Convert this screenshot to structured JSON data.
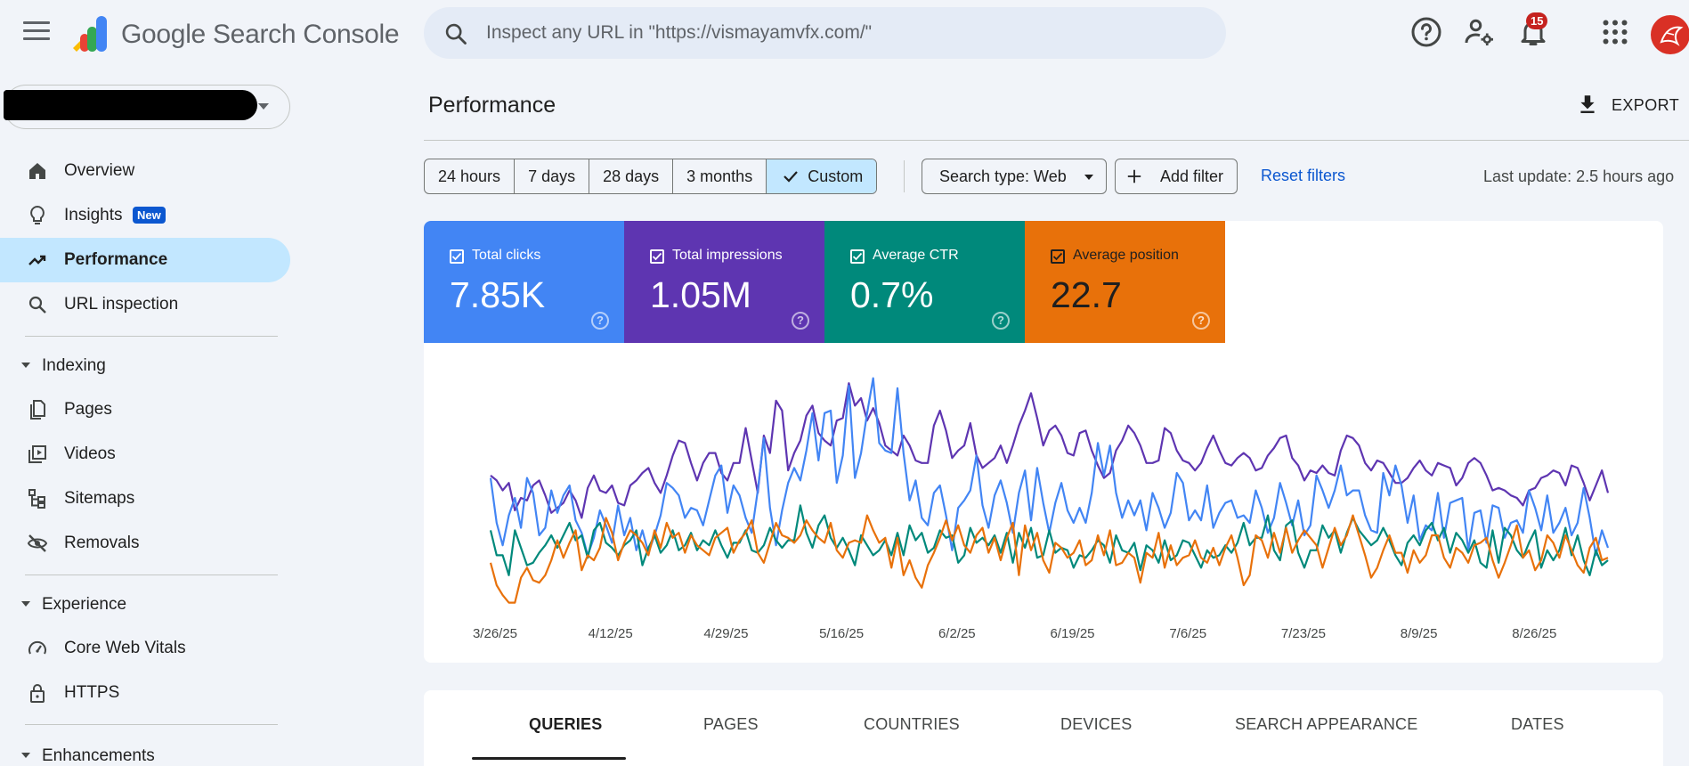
{
  "app": {
    "brand": "Google Search Console"
  },
  "search": {
    "placeholder": "Inspect any URL in \"https://vismayamvfx.com/\""
  },
  "notifications": {
    "count": "15"
  },
  "colors": {
    "clicks": "#4285f4",
    "impressions": "#5e35b1",
    "ctr": "#00897b",
    "position": "#e8710a",
    "active_nav": "#c2e7ff"
  },
  "sidebar": {
    "items": [
      {
        "label": "Overview",
        "icon": "home-icon"
      },
      {
        "label": "Insights",
        "icon": "lightbulb-icon",
        "badge": "New"
      },
      {
        "label": "Performance",
        "icon": "trending-up-icon",
        "active": true
      },
      {
        "label": "URL inspection",
        "icon": "search-icon"
      }
    ],
    "sections": [
      {
        "label": "Indexing",
        "items": [
          {
            "label": "Pages",
            "icon": "pages-icon"
          },
          {
            "label": "Videos",
            "icon": "video-icon"
          },
          {
            "label": "Sitemaps",
            "icon": "sitemap-icon"
          },
          {
            "label": "Removals",
            "icon": "visibility-off-icon"
          }
        ]
      },
      {
        "label": "Experience",
        "items": [
          {
            "label": "Core Web Vitals",
            "icon": "speedometer-icon"
          },
          {
            "label": "HTTPS",
            "icon": "lock-icon"
          }
        ]
      },
      {
        "label": "Enhancements",
        "items": []
      }
    ]
  },
  "main": {
    "title": "Performance",
    "export_label": "EXPORT",
    "date_ranges": [
      "24 hours",
      "7 days",
      "28 days",
      "3 months",
      "Custom"
    ],
    "selected_range": "Custom",
    "search_type": "Search type: Web",
    "add_filter": "Add filter",
    "reset_filters": "Reset filters",
    "last_update": "Last update: 2.5 hours ago"
  },
  "metrics": [
    {
      "label": "Total clicks",
      "value": "7.85K",
      "checked": true
    },
    {
      "label": "Total impressions",
      "value": "1.05M",
      "checked": true
    },
    {
      "label": "Average CTR",
      "value": "0.7%",
      "checked": true
    },
    {
      "label": "Average position",
      "value": "22.7",
      "checked": true
    }
  ],
  "chart_data": {
    "type": "line",
    "x_tick_labels": [
      "3/26/25",
      "4/12/25",
      "4/29/25",
      "5/16/25",
      "6/2/25",
      "6/19/25",
      "7/6/25",
      "7/23/25",
      "8/9/25",
      "8/26/25"
    ],
    "x_start": "3/26/25",
    "y_axis": "hidden (independent normalized scale per series)",
    "grid": false,
    "legend": "metric cards above chart",
    "series": [
      {
        "name": "Total impressions",
        "color": "#5e35b1",
        "values": [
          54,
          52,
          48,
          51,
          40,
          45,
          44,
          50,
          52,
          46,
          39,
          41,
          43,
          48,
          44,
          37,
          49,
          54,
          48,
          47,
          50,
          43,
          42,
          50,
          52,
          55,
          57,
          51,
          47,
          54,
          62,
          68,
          67,
          59,
          52,
          59,
          63,
          63,
          55,
          52,
          59,
          59,
          73,
          60,
          47,
          70,
          63,
          84,
          80,
          56,
          63,
          68,
          78,
          82,
          71,
          68,
          66,
          76,
          77,
          91,
          82,
          85,
          76,
          81,
          75,
          66,
          64,
          62,
          70,
          66,
          60,
          59,
          59,
          74,
          80,
          72,
          61,
          64,
          66,
          75,
          62,
          57,
          59,
          61,
          66,
          59,
          66,
          74,
          80,
          87,
          77,
          66,
          72,
          74,
          70,
          63,
          62,
          71,
          72,
          64,
          58,
          53,
          55,
          64,
          68,
          74,
          71,
          66,
          59,
          59,
          60,
          73,
          71,
          64,
          60,
          59,
          56,
          59,
          65,
          70,
          64,
          59,
          58,
          61,
          63,
          61,
          56,
          57,
          62,
          65,
          69,
          70,
          61,
          58,
          52,
          56,
          55,
          58,
          55,
          54,
          64,
          70,
          69,
          66,
          59,
          56,
          60,
          59,
          55,
          51,
          51,
          53,
          57,
          60,
          56,
          54,
          59,
          58,
          57,
          50,
          53,
          59,
          61,
          59,
          54,
          48,
          49,
          48,
          46,
          45,
          42,
          48,
          49,
          53,
          54,
          56,
          55,
          50,
          58,
          57,
          51,
          44,
          50,
          56,
          47
        ]
      },
      {
        "name": "Total clicks",
        "color": "#4285f4",
        "values": [
          53,
          35,
          26,
          38,
          45,
          33,
          53,
          47,
          30,
          33,
          48,
          39,
          46,
          50,
          36,
          31,
          22,
          29,
          40,
          34,
          27,
          42,
          30,
          37,
          24,
          32,
          23,
          30,
          38,
          51,
          49,
          46,
          37,
          41,
          40,
          34,
          44,
          54,
          58,
          39,
          50,
          46,
          37,
          31,
          48,
          69,
          41,
          26,
          40,
          51,
          57,
          52,
          64,
          79,
          60,
          79,
          80,
          51,
          62,
          90,
          53,
          63,
          79,
          93,
          67,
          64,
          63,
          89,
          63,
          44,
          52,
          37,
          34,
          47,
          50,
          38,
          24,
          41,
          44,
          48,
          62,
          42,
          33,
          46,
          52,
          43,
          31,
          47,
          56,
          36,
          57,
          43,
          31,
          43,
          51,
          40,
          35,
          41,
          35,
          47,
          67,
          54,
          66,
          47,
          37,
          44,
          38,
          44,
          32,
          47,
          41,
          33,
          39,
          55,
          51,
          36,
          40,
          36,
          50,
          33,
          39,
          43,
          44,
          37,
          38,
          35,
          48,
          41,
          31,
          37,
          51,
          43,
          34,
          44,
          30,
          34,
          54,
          48,
          41,
          48,
          58,
          46,
          48,
          48,
          38,
          32,
          31,
          55,
          46,
          58,
          50,
          35,
          46,
          28,
          34,
          32,
          47,
          29,
          43,
          44,
          45,
          24,
          39,
          40,
          27,
          42,
          41,
          29,
          35,
          36,
          31,
          48,
          41,
          32,
          46,
          31,
          35,
          41,
          30,
          35,
          49,
          37,
          22,
          32,
          25
        ]
      },
      {
        "name": "Average CTR",
        "color": "#00897b",
        "values": [
          32,
          22,
          22,
          14,
          32,
          25,
          18,
          19,
          23,
          26,
          30,
          25,
          30,
          35,
          28,
          30,
          21,
          32,
          35,
          27,
          25,
          22,
          26,
          28,
          32,
          18,
          25,
          30,
          23,
          26,
          32,
          24,
          26,
          31,
          24,
          28,
          26,
          32,
          26,
          21,
          27,
          27,
          32,
          24,
          23,
          26,
          33,
          28,
          25,
          28,
          28,
          42,
          31,
          25,
          34,
          38,
          29,
          25,
          29,
          24,
          18,
          30,
          26,
          22,
          24,
          28,
          22,
          31,
          22,
          34,
          28,
          31,
          23,
          25,
          32,
          29,
          30,
          19,
          22,
          33,
          27,
          29,
          26,
          30,
          23,
          31,
          19,
          31,
          25,
          33,
          21,
          22,
          32,
          23,
          25,
          24,
          17,
          22,
          21,
          24,
          28,
          26,
          19,
          30,
          24,
          23,
          27,
          16,
          26,
          24,
          19,
          28,
          20,
          22,
          28,
          27,
          22,
          17,
          24,
          21,
          22,
          26,
          23,
          27,
          35,
          26,
          29,
          29,
          38,
          24,
          20,
          34,
          36,
          23,
          17,
          24,
          24,
          34,
          29,
          32,
          23,
          31,
          37,
          32,
          29,
          26,
          28,
          33,
          28,
          22,
          18,
          27,
          30,
          26,
          32,
          35,
          28,
          33,
          23,
          31,
          28,
          23,
          28,
          19,
          17,
          32,
          19,
          33,
          30,
          24,
          21,
          27,
          32,
          17,
          24,
          20,
          24,
          33,
          22,
          30,
          20,
          14,
          24,
          18,
          20
        ]
      },
      {
        "name": "Average position",
        "color": "#e8710a",
        "values": [
          19,
          10,
          6,
          3,
          3,
          13,
          17,
          12,
          11,
          14,
          20,
          28,
          21,
          27,
          32,
          16,
          22,
          20,
          25,
          37,
          31,
          20,
          27,
          32,
          30,
          27,
          22,
          32,
          25,
          35,
          29,
          31,
          23,
          30,
          26,
          24,
          22,
          29,
          31,
          33,
          23,
          28,
          31,
          36,
          23,
          19,
          27,
          35,
          30,
          29,
          27,
          30,
          36,
          32,
          29,
          27,
          35,
          24,
          21,
          27,
          28,
          27,
          38,
          32,
          27,
          29,
          17,
          29,
          14,
          20,
          13,
          9,
          18,
          23,
          29,
          36,
          28,
          34,
          26,
          23,
          30,
          33,
          23,
          29,
          20,
          29,
          35,
          14,
          34,
          24,
          31,
          20,
          15,
          27,
          25,
          21,
          23,
          28,
          18,
          20,
          30,
          22,
          32,
          18,
          19,
          23,
          21,
          11,
          23,
          21,
          31,
          17,
          26,
          18,
          21,
          22,
          28,
          21,
          19,
          25,
          18,
          25,
          30,
          21,
          10,
          14,
          30,
          28,
          21,
          31,
          23,
          33,
          23,
          28,
          32,
          29,
          26,
          17,
          25,
          33,
          26,
          30,
          38,
          30,
          22,
          13,
          17,
          24,
          30,
          23,
          23,
          15,
          24,
          19,
          22,
          30,
          30,
          21,
          17,
          25,
          23,
          19,
          26,
          27,
          29,
          20,
          13,
          19,
          26,
          34,
          21,
          24,
          16,
          20,
          30,
          27,
          21,
          30,
          24,
          18,
          15,
          25,
          29,
          20,
          21
        ]
      }
    ]
  },
  "tabs": [
    "QUERIES",
    "PAGES",
    "COUNTRIES",
    "DEVICES",
    "SEARCH APPEARANCE",
    "DATES"
  ],
  "active_tab": "QUERIES"
}
